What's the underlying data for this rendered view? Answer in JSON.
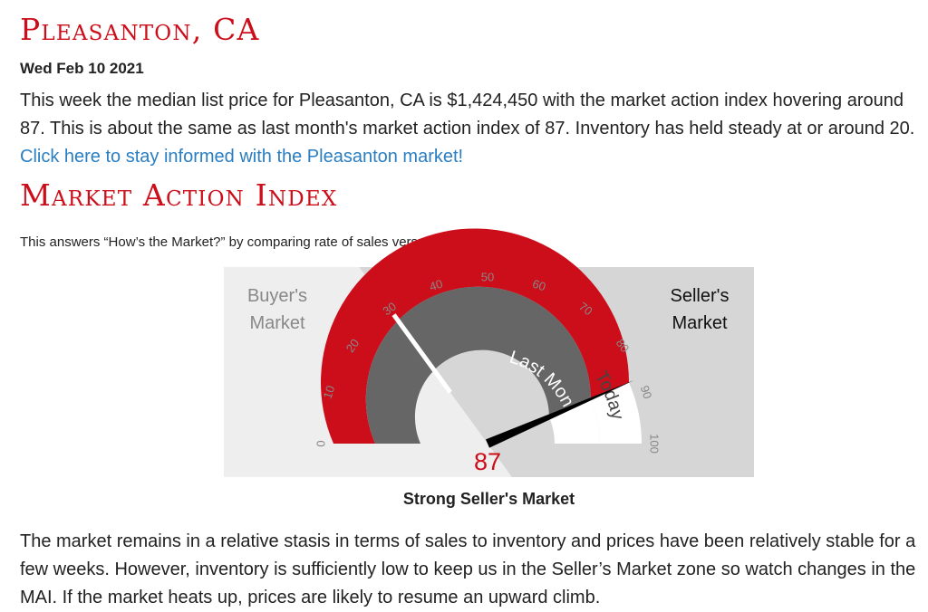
{
  "page": {
    "city_title": "Pleasanton, CA",
    "date": "Wed Feb 10 2021",
    "intro_text": "This week the median list price for Pleasanton, CA is $1,424,450 with the market action index hovering around 87. This is about the same as last month's market action index of 87. Inventory has held steady at or around 20. ",
    "intro_link": "Click here to stay informed with the Pleasanton market!",
    "section_title": "Market Action Index",
    "section_subtitle": "This answers “How’s the Market?” by comparing rate of sales versus inventory.",
    "verdict": "Strong Seller's Market",
    "outro_text": "The market remains in a relative stasis in terms of sales to inventory and prices have been relatively stable for a few weeks. However, inventory is sufficiently low to keep us in the Seller’s Market zone so watch changes in the MAI. If the market heats up, prices are likely to resume an upward climb."
  },
  "colors": {
    "accent": "#cc0d1a",
    "link": "#2a7ec1",
    "last_month_arc": "#666666",
    "buyer_zone": "#eeeeee",
    "seller_zone": "#d6d6d6"
  },
  "chart_data": {
    "type": "gauge",
    "min": 0,
    "max": 100,
    "ticks": [
      "0",
      "10",
      "20",
      "30",
      "40",
      "50",
      "60",
      "70",
      "80",
      "90",
      "100"
    ],
    "threshold": 30,
    "today": 87,
    "last_month": 87,
    "value_label": "87",
    "zone_labels": {
      "buyer": "Buyer's Market",
      "seller": "Seller's Market"
    },
    "series": [
      {
        "name": "Today",
        "value": 87
      },
      {
        "name": "Last Month",
        "value": 87
      }
    ]
  }
}
